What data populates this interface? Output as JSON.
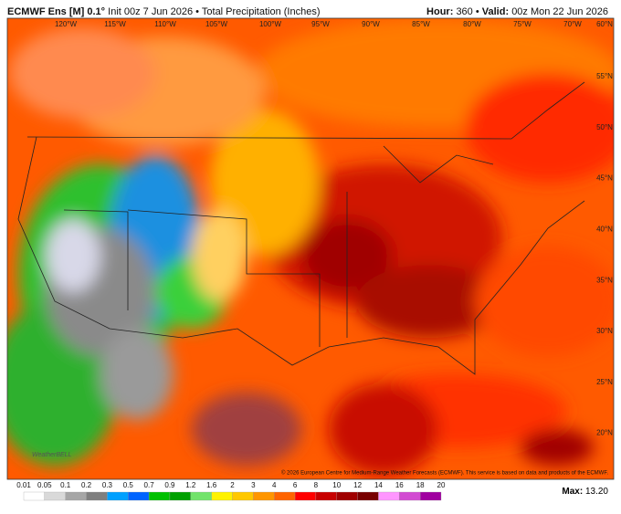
{
  "header": {
    "model": "ECMWF Ens [M] 0.1°",
    "init": "Init 00z 7 Jun 2026",
    "bullet": "•",
    "field": "Total Precipitation (Inches)",
    "hour_label": "Hour:",
    "hour": "360",
    "valid_label": "Valid:",
    "valid": "00z Mon 22 Jun 2026"
  },
  "map": {
    "longitudes": [
      "120°W",
      "115°W",
      "110°W",
      "105°W",
      "100°W",
      "95°W",
      "90°W",
      "85°W",
      "80°W",
      "75°W",
      "70°W",
      "60°N"
    ],
    "latitudes": [
      "55°N",
      "50°N",
      "45°N",
      "40°N",
      "35°N",
      "30°N",
      "25°N",
      "20°N"
    ],
    "watermark": "WeatherBELL",
    "credit": "© 2026 European Centre for Medium-Range Weather Forecasts (ECMWF). This service is based on data and products of the ECMWF."
  },
  "legend": {
    "ticks": [
      "0.01",
      "0.05",
      "0.1",
      "0.2",
      "0.3",
      "0.5",
      "0.7",
      "0.9",
      "1.2",
      "1.6",
      "2",
      "3",
      "4",
      "6",
      "8",
      "10",
      "12",
      "14",
      "16",
      "18",
      "20"
    ],
    "colors": [
      "#ffffff",
      "#d9d9d9",
      "#a6a6a6",
      "#7f7f7f",
      "#00a0ff",
      "#0064ff",
      "#00c000",
      "#00a000",
      "#72e36b",
      "#fff200",
      "#ffc800",
      "#ff9600",
      "#ff6400",
      "#ff0000",
      "#c80000",
      "#a00000",
      "#780000",
      "#ff96ff",
      "#d24bd2",
      "#a000a0"
    ],
    "max_label": "Max:",
    "max": "13.20"
  }
}
